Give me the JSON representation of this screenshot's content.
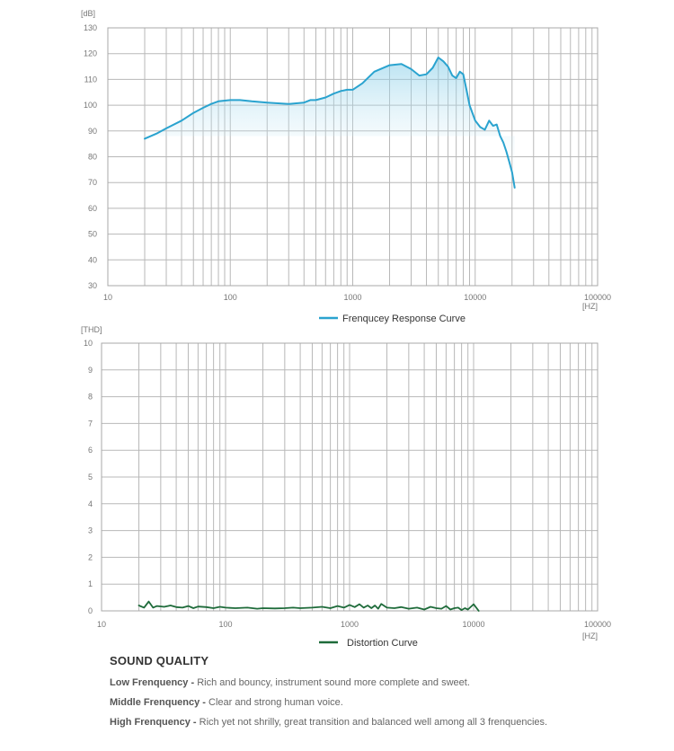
{
  "chart_data": [
    {
      "type": "line",
      "xscale": "log",
      "xlim": [
        10,
        100000
      ],
      "ylim": [
        30,
        130
      ],
      "xticks": [
        10,
        100,
        1000,
        10000,
        100000
      ],
      "xtick_labels": [
        "10",
        "100",
        "1000",
        "10000",
        "100000"
      ],
      "yticks": [
        30,
        40,
        50,
        60,
        70,
        80,
        90,
        100,
        110,
        120,
        130
      ],
      "ytick_labels": [
        "30",
        "40",
        "50",
        "60",
        "70",
        "80",
        "90",
        "100",
        "110",
        "120",
        "130"
      ],
      "ylabel": "[dB]",
      "xlabel": "[HZ]",
      "grid": true,
      "legend_position": "bottom-center",
      "series": [
        {
          "name": "Frenqucey Response Curve",
          "color": "#2aa3cf",
          "fill": true,
          "x": [
            20,
            25,
            30,
            40,
            50,
            60,
            70,
            80,
            100,
            120,
            150,
            200,
            300,
            400,
            450,
            500,
            600,
            700,
            800,
            900,
            1000,
            1200,
            1500,
            2000,
            2500,
            3000,
            3500,
            4000,
            4500,
            5000,
            5500,
            6000,
            6500,
            7000,
            7500,
            8000,
            8500,
            9000,
            10000,
            11000,
            12000,
            13000,
            14000,
            15000,
            16000,
            17000,
            18000,
            19000,
            20000,
            21000
          ],
          "y": [
            87,
            89,
            91,
            94,
            97,
            99,
            100.5,
            101.5,
            102,
            102,
            101.5,
            101,
            100.5,
            101,
            102,
            102,
            103,
            104.5,
            105.5,
            106,
            106,
            108.5,
            113,
            115.5,
            116,
            114,
            111.5,
            112,
            114.5,
            118.5,
            117,
            115,
            111.5,
            110.5,
            113,
            112,
            106,
            100,
            94,
            91.5,
            90.5,
            94,
            92,
            92.5,
            88,
            85.5,
            82,
            78,
            74,
            68
          ]
        }
      ]
    },
    {
      "type": "line",
      "xscale": "log",
      "xlim": [
        10,
        100000
      ],
      "ylim": [
        0,
        10
      ],
      "xticks": [
        10,
        100,
        1000,
        10000,
        100000
      ],
      "xtick_labels": [
        "10",
        "100",
        "1000",
        "10000",
        "100000"
      ],
      "yticks": [
        0,
        1,
        2,
        3,
        4,
        5,
        6,
        7,
        8,
        9,
        10
      ],
      "ytick_labels": [
        "0",
        "1",
        "2",
        "3",
        "4",
        "5",
        "6",
        "7",
        "8",
        "9",
        "10"
      ],
      "ylabel": "[THD]",
      "xlabel": "[HZ]",
      "grid": true,
      "legend_position": "bottom-center",
      "series": [
        {
          "name": "Distortion Curve",
          "color": "#1e6b3a",
          "x": [
            20,
            22,
            24,
            26,
            28,
            32,
            36,
            40,
            45,
            50,
            55,
            60,
            70,
            80,
            90,
            100,
            120,
            150,
            180,
            200,
            250,
            300,
            350,
            400,
            500,
            600,
            700,
            800,
            900,
            1000,
            1100,
            1200,
            1300,
            1400,
            1500,
            1600,
            1700,
            1800,
            2000,
            2300,
            2600,
            3000,
            3500,
            4000,
            4500,
            5000,
            5500,
            6000,
            6500,
            7000,
            7500,
            8000,
            8500,
            9000,
            10000,
            11000
          ],
          "y": [
            0.2,
            0.12,
            0.35,
            0.12,
            0.18,
            0.15,
            0.2,
            0.14,
            0.12,
            0.18,
            0.1,
            0.16,
            0.14,
            0.1,
            0.15,
            0.12,
            0.1,
            0.12,
            0.08,
            0.1,
            0.09,
            0.1,
            0.12,
            0.1,
            0.12,
            0.15,
            0.1,
            0.18,
            0.12,
            0.22,
            0.14,
            0.25,
            0.12,
            0.2,
            0.1,
            0.2,
            0.08,
            0.26,
            0.12,
            0.1,
            0.14,
            0.08,
            0.12,
            0.05,
            0.15,
            0.1,
            0.08,
            0.18,
            0.05,
            0.1,
            0.12,
            0.03,
            0.1,
            0.05,
            0.25,
            0.0
          ]
        }
      ]
    }
  ],
  "sound_quality": {
    "heading": "SOUND QUALITY",
    "items": [
      {
        "label": "Low Frenquency - ",
        "text": "Rich and bouncy, instrument sound more complete and sweet."
      },
      {
        "label": "Middle Frenquency - ",
        "text": "Clear and strong human voice."
      },
      {
        "label": "High Frenquency - ",
        "text": "Rich yet not shrilly, great transition and balanced well among all 3 frenquencies."
      }
    ]
  }
}
